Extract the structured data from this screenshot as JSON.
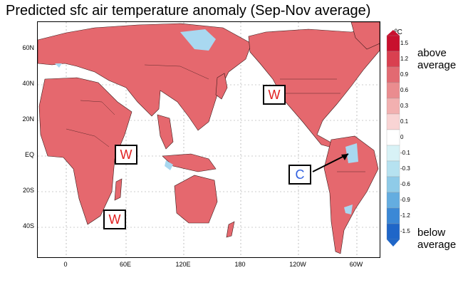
{
  "title": "Predicted sfc air temperature anomaly (Sep-Nov average)",
  "map": {
    "lat_labels": [
      "60N",
      "40N",
      "20N",
      "EQ",
      "20S",
      "40S"
    ],
    "lon_labels": [
      "0",
      "60E",
      "120E",
      "180",
      "120W",
      "60W"
    ]
  },
  "annotations": [
    {
      "text": "W",
      "kind": "warm"
    },
    {
      "text": "W",
      "kind": "warm"
    },
    {
      "text": "W",
      "kind": "warm"
    },
    {
      "text": "W",
      "kind": "warm"
    },
    {
      "text": "C",
      "kind": "cold"
    }
  ],
  "colorbar": {
    "unit": "ºC",
    "ticks": [
      "1.5",
      "1.2",
      "0.9",
      "0.6",
      "0.3",
      "0.1",
      "0",
      "-0.1",
      "-0.3",
      "-0.6",
      "-0.9",
      "-1.2",
      "-1.5"
    ],
    "colors": [
      "#c8102e",
      "#d94050",
      "#e26a72",
      "#ea8c8f",
      "#f2b0b0",
      "#f9d4d4",
      "#ffffff",
      "#d8f2f6",
      "#b6e2f0",
      "#8fcbe8",
      "#64ade0",
      "#3b88d6",
      "#1f66c8"
    ],
    "above_label": [
      "above",
      "average"
    ],
    "below_label": [
      "below",
      "average"
    ]
  },
  "colors": {
    "warm": "#e26a72",
    "cold_patch": "#a9d8f0",
    "coast": "#202020"
  }
}
